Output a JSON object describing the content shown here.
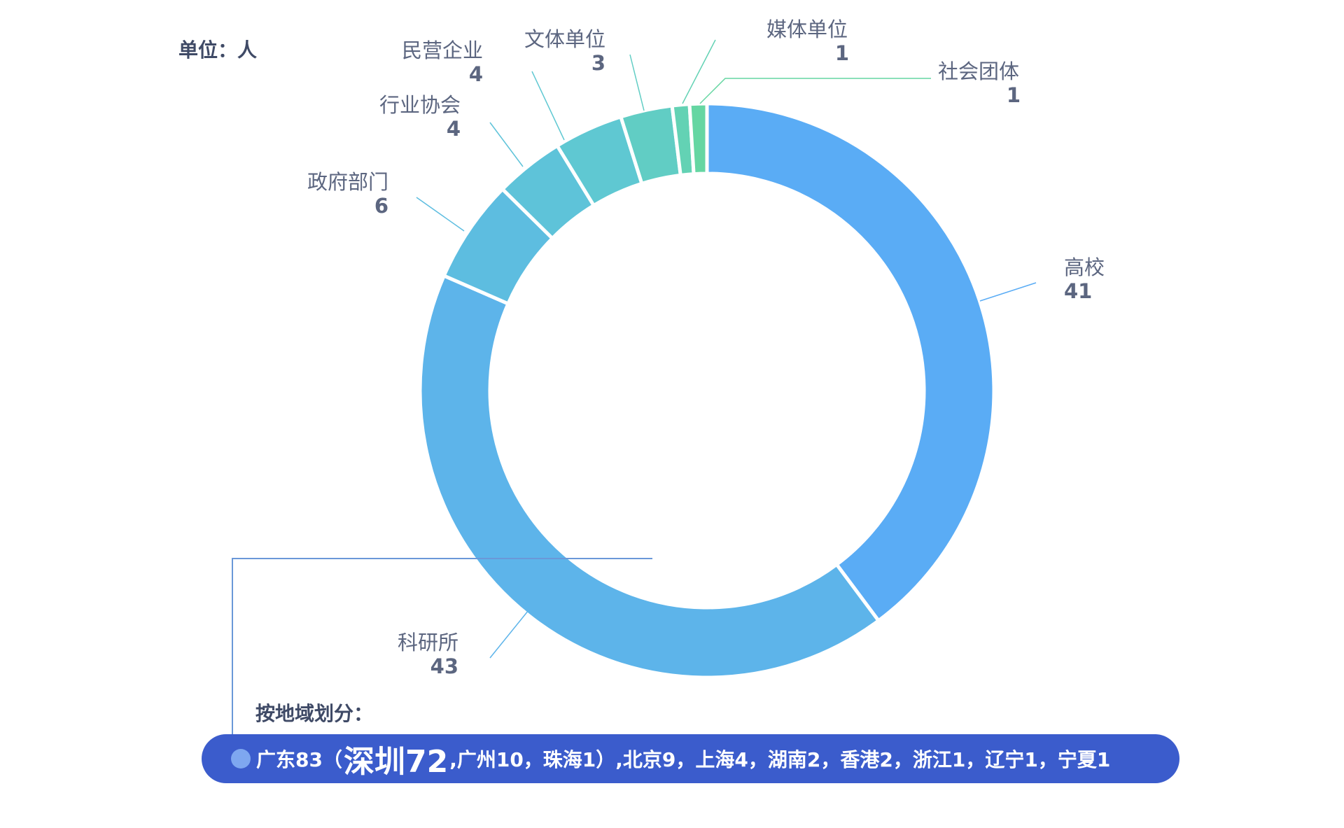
{
  "unit_label": "单位：人",
  "region": {
    "title": "按地域划分：",
    "lead": "广东83（",
    "highlight": "深圳72",
    "rest": ",广州10，珠海1）,北京9，上海4，湖南2，香港2，浙江1，辽宁1，宁夏1",
    "bar_color": "#3b5ccc",
    "dot_color": "#7ea7f0"
  },
  "chart_data": {
    "type": "pie",
    "variant": "donut",
    "title": "",
    "legend": "none",
    "slices": [
      {
        "name": "高校",
        "value": 41,
        "color": "#5aacf5"
      },
      {
        "name": "科研所",
        "value": 43,
        "color": "#5db4ea"
      },
      {
        "name": "政府部门",
        "value": 6,
        "color": "#5dbde0"
      },
      {
        "name": "行业协会",
        "value": 4,
        "color": "#5ec3d9"
      },
      {
        "name": "民营企业",
        "value": 4,
        "color": "#5fc8d2"
      },
      {
        "name": "文体单位",
        "value": 3,
        "color": "#61cdc4"
      },
      {
        "name": "媒体单位",
        "value": 1,
        "color": "#63d2b4"
      },
      {
        "name": "社会团体",
        "value": 1,
        "color": "#65d6a2"
      }
    ]
  }
}
